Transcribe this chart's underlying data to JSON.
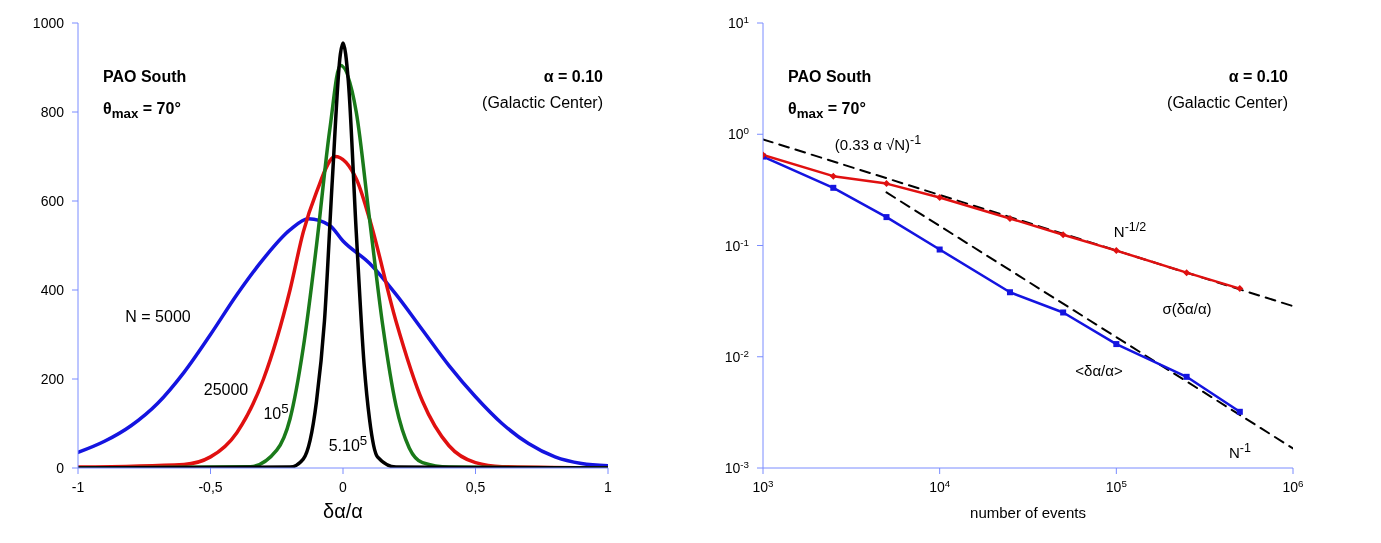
{
  "chart_data": [
    {
      "type": "line",
      "xlabel": "δα/α",
      "xlim": [
        -1,
        1
      ],
      "xticks": [
        -1,
        {
          "value": -0.5,
          "label": "-0,5"
        },
        0,
        {
          "value": 0.5,
          "label": "0,5"
        },
        1
      ],
      "ylim": [
        0,
        1000
      ],
      "yticks": [
        0,
        200,
        400,
        600,
        800,
        1000
      ],
      "annotations": [
        "PAO South",
        "θ$_{max}$ = 70°",
        "α = 0.10",
        "(Galactic Center)",
        "N = 5000",
        "25000",
        "10$^{5}$",
        "5.10$^{5}$"
      ],
      "series": [
        {
          "color": "#1414e0",
          "x": [
            -1,
            -0.9,
            -0.8,
            -0.7,
            -0.6,
            -0.5,
            -0.4,
            -0.3,
            -0.2,
            -0.13,
            -0.05,
            0,
            0.1,
            0.2,
            0.3,
            0.4,
            0.5,
            0.6,
            0.7,
            0.8,
            0.9,
            1
          ],
          "values": [
            35,
            60,
            95,
            145,
            215,
            300,
            390,
            470,
            535,
            560,
            545,
            510,
            460,
            390,
            310,
            230,
            160,
            100,
            55,
            25,
            10,
            5
          ]
        },
        {
          "color": "#e01010",
          "x": [
            -1,
            -0.6,
            -0.5,
            -0.4,
            -0.3,
            -0.2,
            -0.15,
            -0.1,
            -0.03,
            0.05,
            0.1,
            0.2,
            0.3,
            0.4,
            0.5,
            0.6,
            1
          ],
          "values": [
            2,
            8,
            25,
            80,
            200,
            400,
            530,
            620,
            700,
            650,
            560,
            330,
            150,
            50,
            12,
            3,
            0
          ]
        },
        {
          "color": "#1a7a1a",
          "x": [
            -1,
            -0.35,
            -0.25,
            -0.2,
            -0.15,
            -0.1,
            -0.05,
            -0.01,
            0.05,
            0.1,
            0.15,
            0.2,
            0.25,
            0.3,
            0.4,
            1
          ],
          "values": [
            0,
            3,
            40,
            110,
            270,
            500,
            760,
            905,
            800,
            560,
            320,
            140,
            45,
            12,
            2,
            0
          ]
        },
        {
          "color": "#000000",
          "x": [
            -1,
            -0.2,
            -0.15,
            -0.1,
            -0.07,
            -0.04,
            -0.01,
            0,
            0.02,
            0.05,
            0.08,
            0.1,
            0.13,
            0.2,
            1
          ],
          "values": [
            0,
            2,
            20,
            150,
            330,
            650,
            930,
            955,
            870,
            530,
            230,
            110,
            25,
            2,
            0
          ]
        }
      ]
    },
    {
      "type": "line",
      "xlabel": "number of events",
      "log": "xy",
      "xlim": [
        1000,
        1000000
      ],
      "xticks": [
        {
          "value": 1000,
          "label": "10$^{3}$"
        },
        {
          "value": 10000,
          "label": "10$^{4}$"
        },
        {
          "value": 100000,
          "label": "10$^{5}$"
        },
        {
          "value": 1000000,
          "label": "10$^{6}$"
        }
      ],
      "ylim": [
        0.001,
        10
      ],
      "yticks": [
        {
          "value": 0.001,
          "label": "10$^{-3}$"
        },
        {
          "value": 0.01,
          "label": "10$^{-2}$"
        },
        {
          "value": 0.1,
          "label": "10$^{-1}$"
        },
        {
          "value": 1,
          "label": "10$^{0}$"
        },
        {
          "value": 10,
          "label": "10$^{1}$"
        }
      ],
      "annotations": [
        "PAO South",
        "θ$_{max}$ = 70°",
        "α = 0.10",
        "(Galactic Center)",
        "(0.33 α √N)$^{-1}$",
        "N$^{-1/2}$",
        "σ(δα/α)",
        "<δα/α>",
        "N$^{-1}$"
      ],
      "series": [
        {
          "color": "#000000",
          "line_style": "dashed",
          "marker": "none",
          "x": [
            1000,
            1000000
          ],
          "values": [
            0.9,
            0.0285
          ]
        },
        {
          "color": "#000000",
          "line_style": "dashed",
          "marker": "none",
          "x": [
            5000,
            1000000
          ],
          "values": [
            0.3,
            0.0015
          ]
        },
        {
          "color": "#1414e0",
          "marker": "square",
          "x": [
            1000,
            2500,
            5000,
            10000,
            25000,
            50000,
            100000,
            250000,
            500000
          ],
          "values": [
            0.63,
            0.33,
            0.18,
            0.092,
            0.038,
            0.025,
            0.013,
            0.0066,
            0.0032
          ]
        },
        {
          "color": "#e01010",
          "marker": "diamond",
          "x": [
            1000,
            2500,
            5000,
            10000,
            25000,
            50000,
            100000,
            250000,
            500000
          ],
          "values": [
            0.65,
            0.42,
            0.36,
            0.27,
            0.175,
            0.125,
            0.09,
            0.057,
            0.041
          ]
        }
      ]
    }
  ]
}
